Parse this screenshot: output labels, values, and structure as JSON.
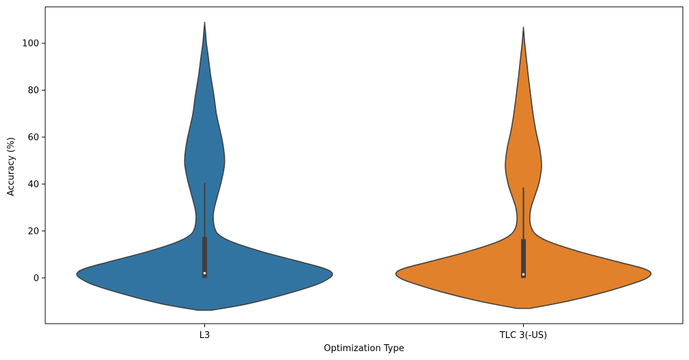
{
  "chart_data": {
    "type": "violin",
    "xlabel": "Optimization Type",
    "ylabel": "Accuracy (%)",
    "ylim": [
      -19.5,
      115.5
    ],
    "yticks": [
      0,
      20,
      40,
      60,
      80,
      100
    ],
    "ytick_labels": [
      "0",
      "20",
      "40",
      "60",
      "80",
      "100"
    ],
    "grid": false,
    "categories": [
      "L3",
      "TLC 3(-US)"
    ],
    "series": [
      {
        "category": "L3",
        "color": "#3274a1",
        "y_min": -13.8,
        "y_max": 108.5,
        "density_profile": [
          {
            "y": -13.8,
            "w": 0.05
          },
          {
            "y": -11,
            "w": 0.34
          },
          {
            "y": -7,
            "w": 0.63
          },
          {
            "y": -3,
            "w": 0.87
          },
          {
            "y": 0,
            "w": 0.98
          },
          {
            "y": 2,
            "w": 1.0
          },
          {
            "y": 4,
            "w": 0.94
          },
          {
            "y": 7,
            "w": 0.74
          },
          {
            "y": 11,
            "w": 0.46
          },
          {
            "y": 15,
            "w": 0.23
          },
          {
            "y": 18,
            "w": 0.12
          },
          {
            "y": 21,
            "w": 0.08
          },
          {
            "y": 26,
            "w": 0.067
          },
          {
            "y": 30,
            "w": 0.077
          },
          {
            "y": 36,
            "w": 0.106
          },
          {
            "y": 42,
            "w": 0.135
          },
          {
            "y": 48,
            "w": 0.155
          },
          {
            "y": 52,
            "w": 0.155
          },
          {
            "y": 58,
            "w": 0.14
          },
          {
            "y": 64,
            "w": 0.116
          },
          {
            "y": 70,
            "w": 0.092
          },
          {
            "y": 78,
            "w": 0.072
          },
          {
            "y": 86,
            "w": 0.048
          },
          {
            "y": 94,
            "w": 0.029
          },
          {
            "y": 100,
            "w": 0.014
          },
          {
            "y": 105,
            "w": 0.006
          },
          {
            "y": 108.5,
            "w": 0.0
          }
        ],
        "quartile_low": 0,
        "quartile_high": 17.5,
        "median": 2,
        "whisker_low": 0,
        "whisker_high": 40.5
      },
      {
        "category": "TLC 3(-US)",
        "color": "#e1812c",
        "y_min": -13,
        "y_max": 106.5,
        "density_profile": [
          {
            "y": -13,
            "w": 0.05
          },
          {
            "y": -10,
            "w": 0.34
          },
          {
            "y": -6,
            "w": 0.64
          },
          {
            "y": -2,
            "w": 0.88
          },
          {
            "y": 0,
            "w": 0.97
          },
          {
            "y": 2,
            "w": 1.0
          },
          {
            "y": 4,
            "w": 0.94
          },
          {
            "y": 7,
            "w": 0.73
          },
          {
            "y": 11,
            "w": 0.45
          },
          {
            "y": 15,
            "w": 0.22
          },
          {
            "y": 18,
            "w": 0.11
          },
          {
            "y": 21,
            "w": 0.065
          },
          {
            "y": 25,
            "w": 0.05
          },
          {
            "y": 30,
            "w": 0.06
          },
          {
            "y": 35,
            "w": 0.09
          },
          {
            "y": 40,
            "w": 0.12
          },
          {
            "y": 46,
            "w": 0.14
          },
          {
            "y": 50,
            "w": 0.14
          },
          {
            "y": 56,
            "w": 0.125
          },
          {
            "y": 62,
            "w": 0.1
          },
          {
            "y": 70,
            "w": 0.075
          },
          {
            "y": 78,
            "w": 0.056
          },
          {
            "y": 86,
            "w": 0.038
          },
          {
            "y": 94,
            "w": 0.022
          },
          {
            "y": 100,
            "w": 0.01
          },
          {
            "y": 104,
            "w": 0.004
          },
          {
            "y": 106.5,
            "w": 0.0
          }
        ],
        "quartile_low": 0,
        "quartile_high": 16.5,
        "median": 1.5,
        "whisker_low": 0,
        "whisker_high": 38.5
      }
    ]
  }
}
